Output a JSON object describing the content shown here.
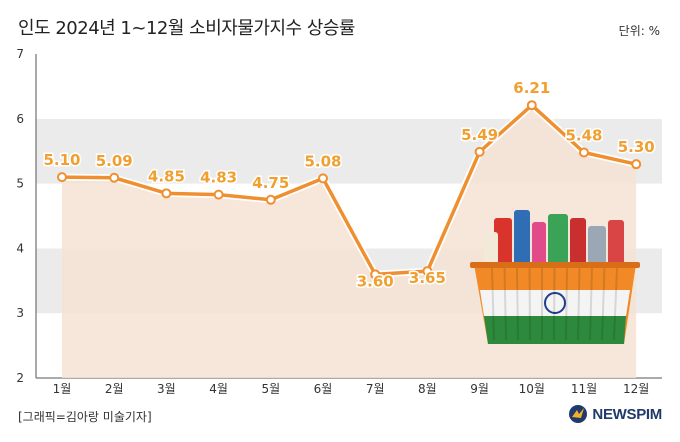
{
  "header": {
    "title": "인도 2024년 1~12월 소비자물가지수 상승률",
    "unit": "단위: %"
  },
  "footer": {
    "credit": "[그래픽=김아랑 미술기자]",
    "logo_text": "NEWSPIM"
  },
  "colors": {
    "line": "#ef8f2f",
    "marker_fill": "#ffffff",
    "area_fill": "#f5e3d3",
    "band_fill": "#ebebeb",
    "data_label": "#f0a030"
  },
  "decor": {
    "basket_icon": "shopping-basket-with-indian-flag"
  },
  "chart_data": {
    "type": "line",
    "title": "인도 2024년 1~12월 소비자물가지수 상승률",
    "ylabel": "",
    "xlabel": "",
    "categories": [
      "1월",
      "2월",
      "3월",
      "4월",
      "5월",
      "6월",
      "7월",
      "8월",
      "9월",
      "10월",
      "11월",
      "12월"
    ],
    "values": [
      5.1,
      5.09,
      4.85,
      4.83,
      4.75,
      5.08,
      3.6,
      3.65,
      5.49,
      6.21,
      5.48,
      5.3
    ],
    "value_labels": [
      "5.10",
      "5.09",
      "4.85",
      "4.83",
      "4.75",
      "5.08",
      "3.60",
      "3.65",
      "5.49",
      "6.21",
      "5.48",
      "5.30"
    ],
    "ylim": [
      2,
      7
    ],
    "yticks": [
      "2",
      "3",
      "4",
      "5",
      "6",
      "7"
    ],
    "grid": "alternating horizontal bands",
    "legend": "none"
  }
}
